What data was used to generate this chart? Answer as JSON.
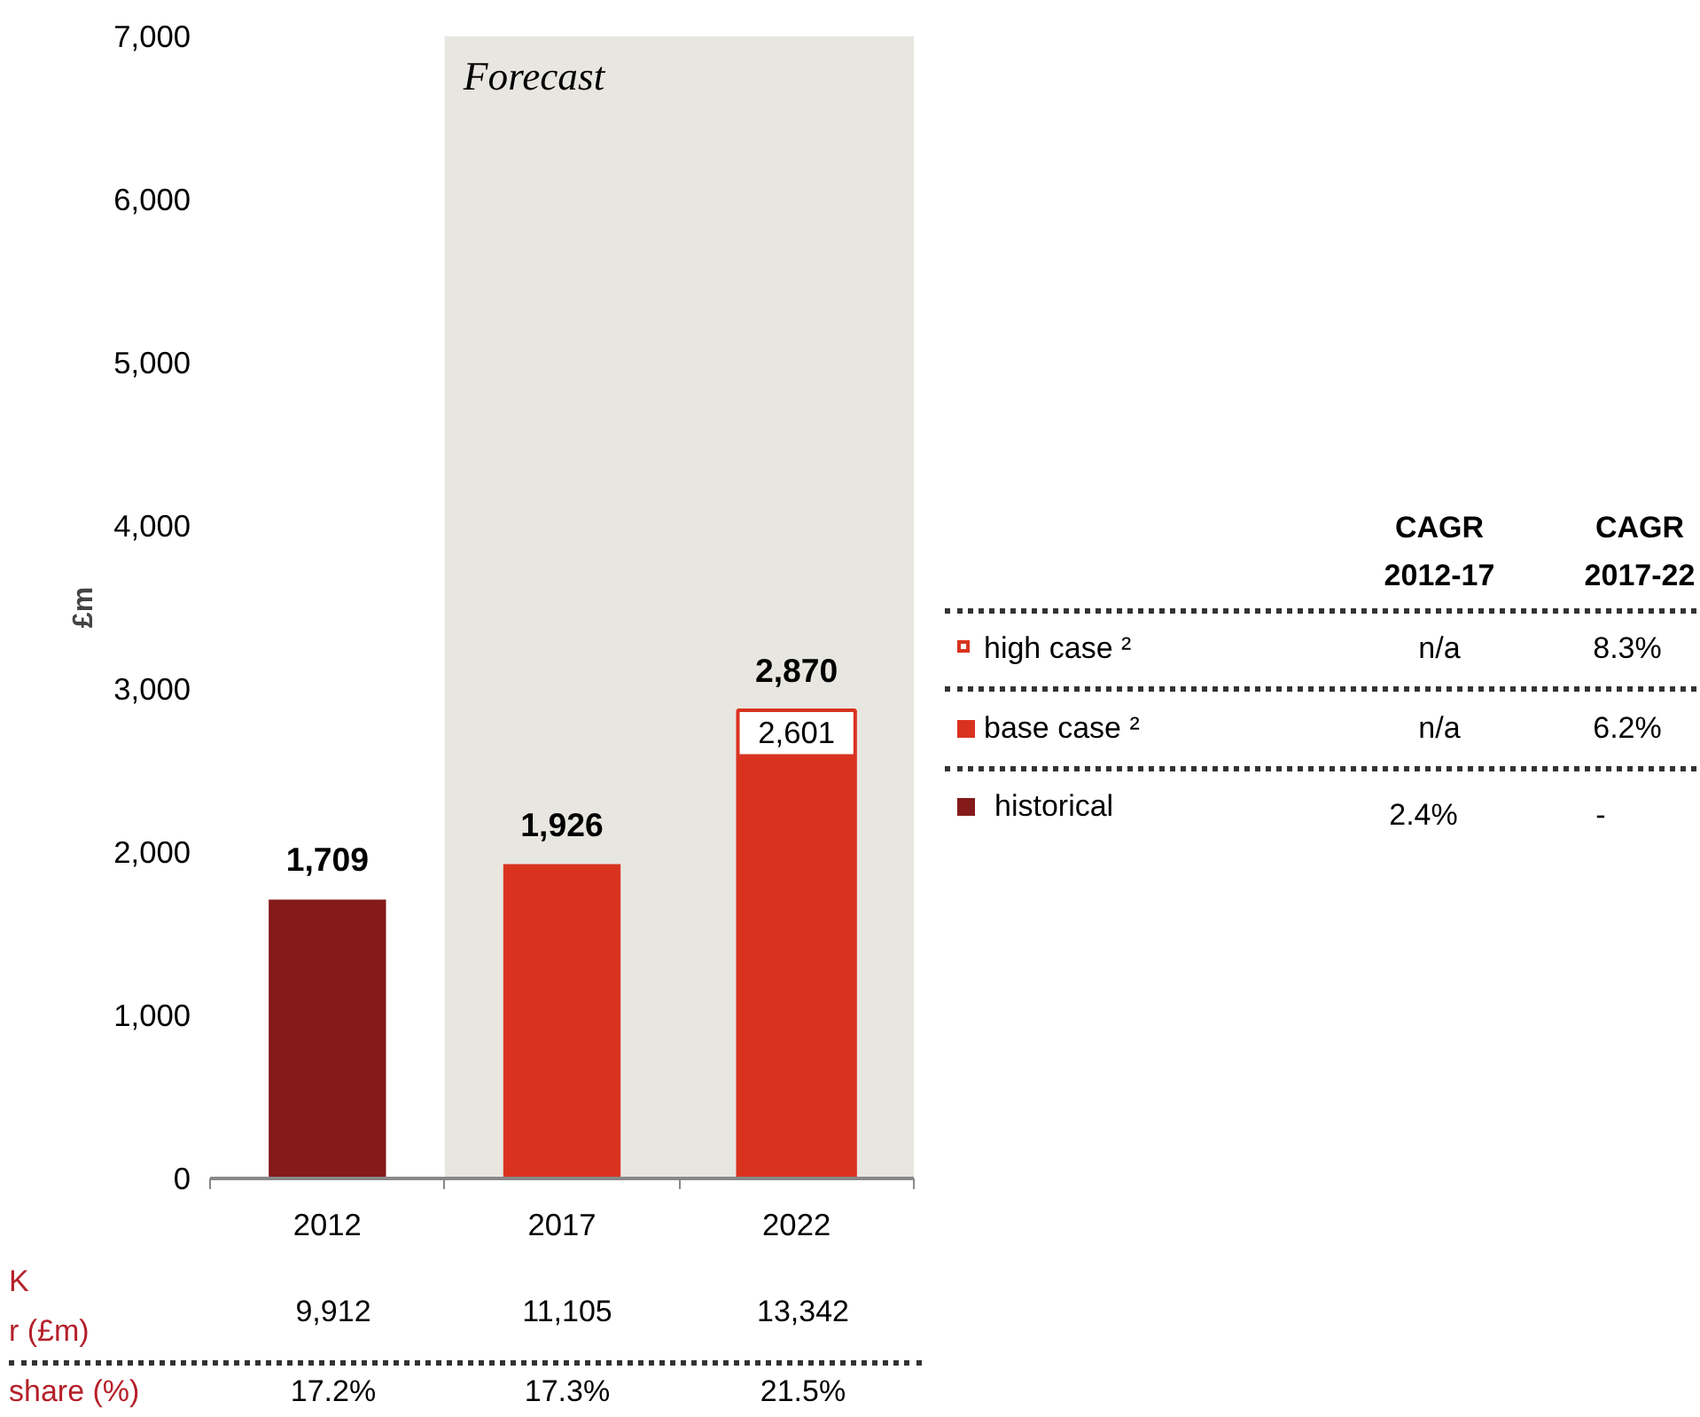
{
  "chart_data": {
    "type": "bar",
    "ylabel": "£m",
    "categories": [
      "2012",
      "2017",
      "2022"
    ],
    "series": [
      {
        "name": "high case ²",
        "color": "#d93320",
        "values": [
          null,
          null,
          2870
        ],
        "value_labels": [
          null,
          null,
          "2,870"
        ]
      },
      {
        "name": "base case ²",
        "color": "#d93320",
        "values": [
          null,
          1926,
          2601
        ],
        "value_labels": [
          null,
          "1,926",
          "2,601"
        ]
      },
      {
        "name": "historical",
        "color": "#841a1a",
        "values": [
          1709,
          null,
          null
        ],
        "value_labels": [
          "1,709",
          null,
          null
        ]
      }
    ],
    "ylim": [
      0,
      7000
    ],
    "yticks": [
      {
        "value": 0,
        "label": "0"
      },
      {
        "value": 1000,
        "label": "1,000"
      },
      {
        "value": 2000,
        "label": "2,000"
      },
      {
        "value": 3000,
        "label": "3,000"
      },
      {
        "value": 4000,
        "label": "4,000"
      },
      {
        "value": 5000,
        "label": "5,000"
      },
      {
        "value": 6000,
        "label": "6,000"
      },
      {
        "value": 7000,
        "label": "7,000"
      }
    ],
    "bands": [
      {
        "axis": "x",
        "from": "2017",
        "to": "2022",
        "label": "Forecast",
        "color": "#e8e6e0"
      }
    ],
    "legend": "right",
    "grid": false,
    "annotations": [
      "CAGR",
      "2012-17",
      "CAGR",
      "2017-22",
      "n/a",
      "8.3%",
      "n/a",
      "6.2%",
      "2.4%",
      "-",
      "K",
      "r (£m)",
      "9,912",
      "11,105",
      "13,342",
      "share (%)",
      "17.2%",
      "17.3%",
      "21.5%"
    ]
  }
}
